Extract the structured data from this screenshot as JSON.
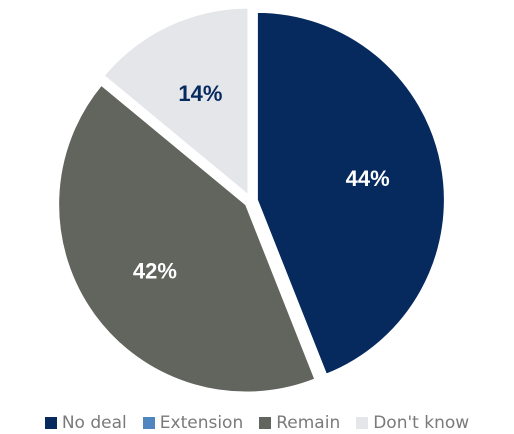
{
  "chart_data": {
    "type": "pie",
    "title": "",
    "legend_position": "bottom",
    "series": [
      {
        "name": "No deal",
        "value": 44,
        "label": "44%",
        "color": "#062a5e",
        "label_color": "#ffffff"
      },
      {
        "name": "Extension",
        "value": 0,
        "label": "",
        "color": "#4f86c0",
        "label_color": "#ffffff"
      },
      {
        "name": "Remain",
        "value": 42,
        "label": "42%",
        "color": "#62645e",
        "label_color": "#ffffff"
      },
      {
        "name": "Don't know",
        "value": 14,
        "label": "14%",
        "color": "#e4e6ea",
        "label_color": "#062a5e"
      }
    ]
  }
}
